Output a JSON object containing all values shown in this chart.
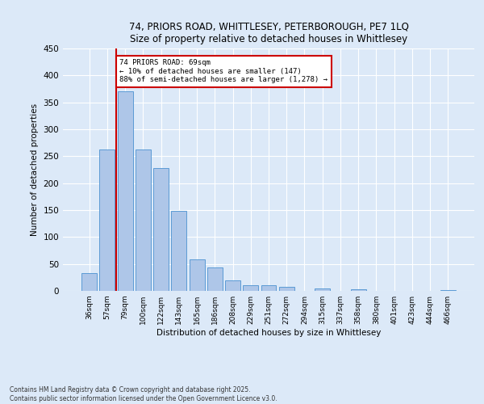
{
  "title1": "74, PRIORS ROAD, WHITTLESEY, PETERBOROUGH, PE7 1LQ",
  "title2": "Size of property relative to detached houses in Whittlesey",
  "xlabel": "Distribution of detached houses by size in Whittlesey",
  "ylabel": "Number of detached properties",
  "bar_labels": [
    "36sqm",
    "57sqm",
    "79sqm",
    "100sqm",
    "122sqm",
    "143sqm",
    "165sqm",
    "186sqm",
    "208sqm",
    "229sqm",
    "251sqm",
    "272sqm",
    "294sqm",
    "315sqm",
    "337sqm",
    "358sqm",
    "380sqm",
    "401sqm",
    "423sqm",
    "444sqm",
    "466sqm"
  ],
  "bar_values": [
    33,
    262,
    370,
    262,
    228,
    148,
    59,
    44,
    19,
    11,
    11,
    7,
    0,
    5,
    0,
    3,
    0,
    0,
    0,
    0,
    2
  ],
  "bar_color": "#aec6e8",
  "bar_edge_color": "#5b9bd5",
  "vline_x": 1.5,
  "vline_color": "#cc0000",
  "annotation_text": "74 PRIORS ROAD: 69sqm\n← 10% of detached houses are smaller (147)\n88% of semi-detached houses are larger (1,278) →",
  "annotation_box_color": "#ffffff",
  "annotation_box_edge": "#cc0000",
  "ylim": [
    0,
    450
  ],
  "yticks": [
    0,
    50,
    100,
    150,
    200,
    250,
    300,
    350,
    400,
    450
  ],
  "footer_line1": "Contains HM Land Registry data © Crown copyright and database right 2025.",
  "footer_line2": "Contains public sector information licensed under the Open Government Licence v3.0.",
  "bg_color": "#dce9f8",
  "plot_bg_color": "#dce9f8"
}
